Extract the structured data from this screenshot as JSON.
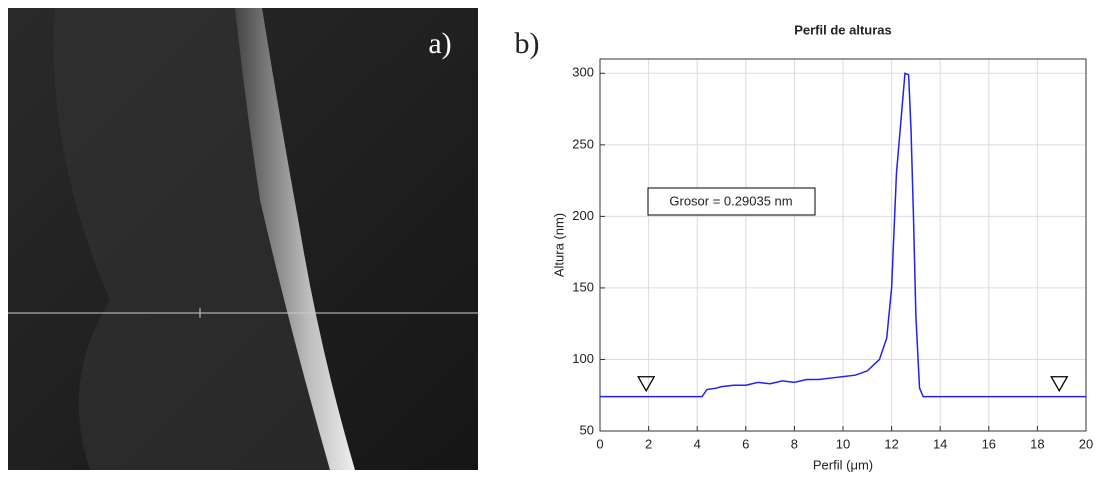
{
  "panel_labels": [
    "a)",
    "b)"
  ],
  "chart_data": {
    "type": "line",
    "title": "Perfil de alturas",
    "x_label": "Perfil (μm)",
    "y_label": "Altura (nm)",
    "x": [
      0,
      2,
      4,
      4.2,
      4.4,
      4.8,
      5,
      5.5,
      6,
      6.5,
      7,
      7.5,
      8,
      8.5,
      9,
      9.5,
      10,
      10.5,
      11,
      11.5,
      11.8,
      12,
      12.2,
      12.4,
      12.55,
      12.7,
      12.8,
      12.9,
      13,
      13.15,
      13.3,
      14,
      16,
      18,
      20
    ],
    "values": [
      74,
      74,
      74,
      74,
      79,
      80,
      81,
      82,
      82,
      84,
      83,
      85,
      84,
      86,
      86,
      87,
      88,
      89,
      92,
      100,
      115,
      150,
      230,
      270,
      300,
      299,
      260,
      200,
      130,
      80,
      74,
      74,
      74,
      74,
      74
    ],
    "color": "#2222ee",
    "cursor_markers": {
      "x": [
        1.9,
        18.9
      ],
      "values": [
        83,
        83
      ]
    },
    "annotation": "Grosor = 0.29035 nm",
    "xlim": [
      0,
      20
    ],
    "xticks": [
      0,
      2,
      4,
      6,
      8,
      10,
      12,
      14,
      16,
      18,
      20
    ],
    "ylim": [
      50,
      310
    ],
    "yticks": [
      50,
      100,
      150,
      200,
      250,
      300
    ],
    "grid": true
  }
}
